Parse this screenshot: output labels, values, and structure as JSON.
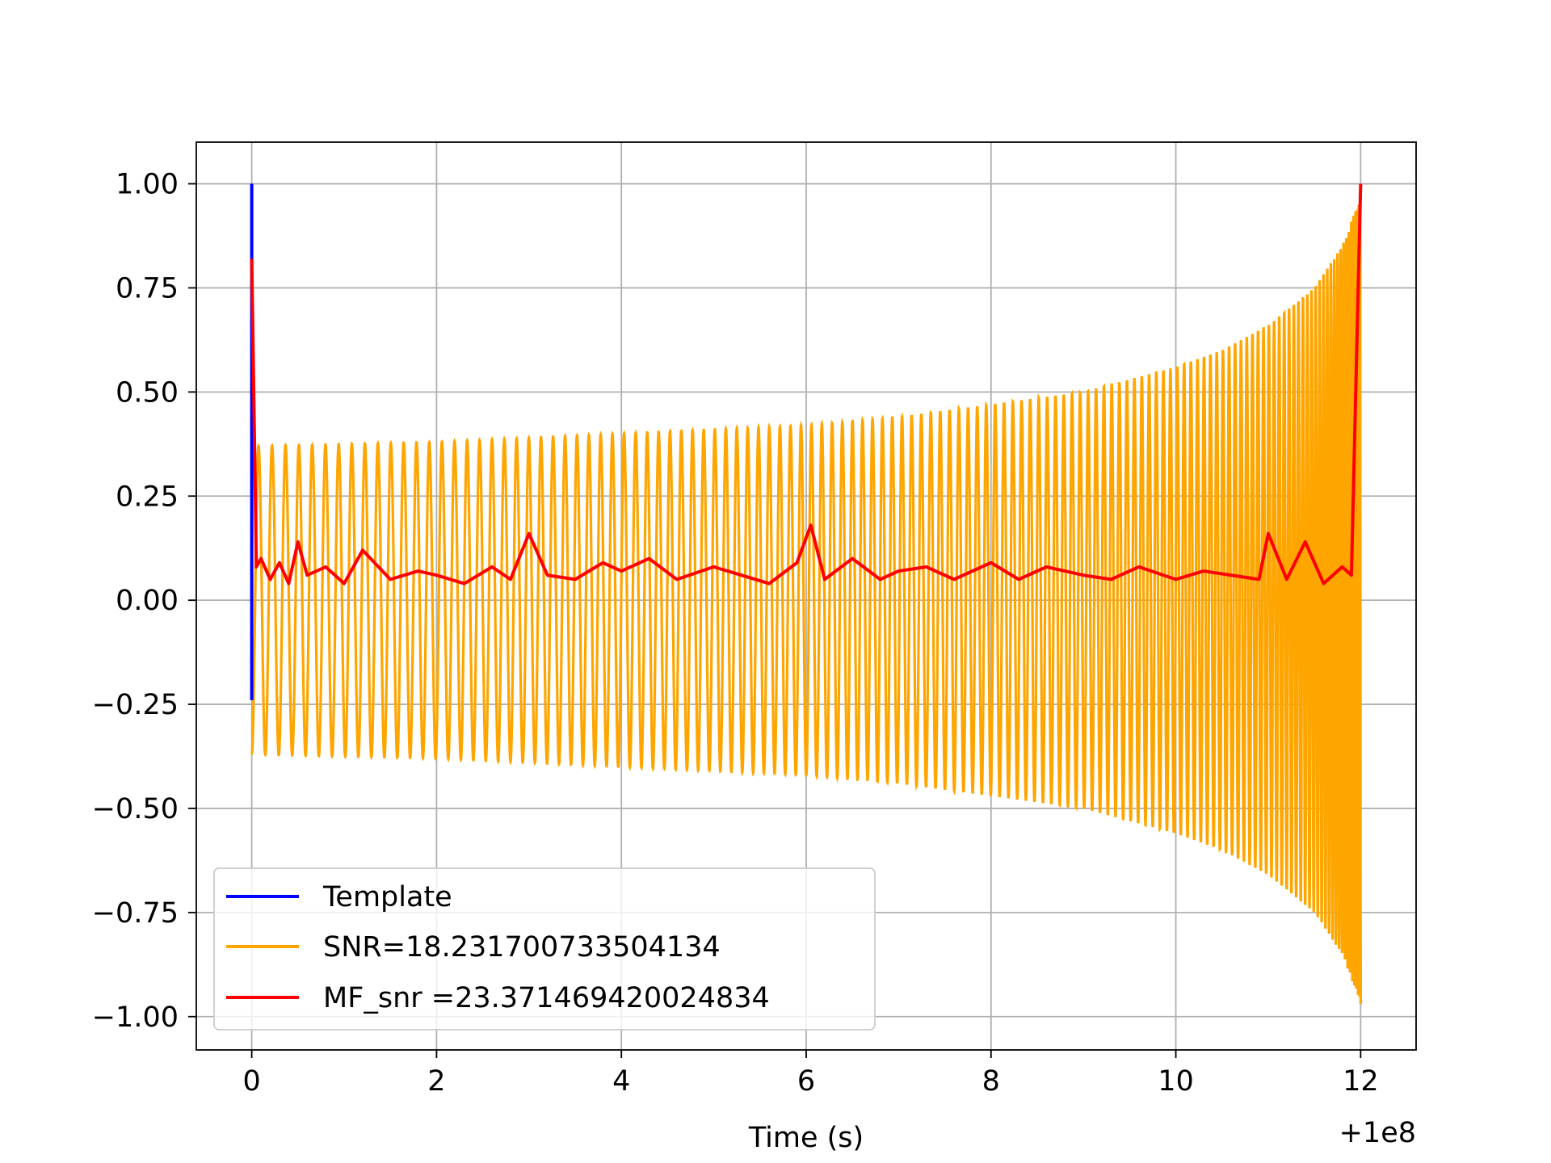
{
  "chart_data": {
    "type": "line",
    "title": "",
    "xlabel": "Time (s)",
    "ylabel": "",
    "x_offset_label": "+1e8",
    "xlim": [
      -0.6,
      12.6
    ],
    "ylim": [
      -1.08,
      1.1
    ],
    "xticks": [
      0,
      2,
      4,
      6,
      8,
      10,
      12
    ],
    "xtick_labels": [
      "0",
      "2",
      "4",
      "6",
      "8",
      "10",
      "12"
    ],
    "yticks": [
      1.0,
      0.75,
      0.5,
      0.25,
      0.0,
      -0.25,
      -0.5,
      -0.75,
      -1.0
    ],
    "ytick_labels": [
      "1.00",
      "0.75",
      "0.50",
      "0.25",
      "0.00",
      "−0.25",
      "−0.50",
      "−0.75",
      "−1.00"
    ],
    "grid": true,
    "legend_position": "lower-left",
    "series": [
      {
        "name": "Template",
        "color": "#0000ff",
        "x": [
          0.0,
          0.0,
          0.0
        ],
        "y": [
          1.0,
          -0.24,
          0.0
        ]
      },
      {
        "name": "SNR=18.231700733504134",
        "color": "#ffa500",
        "description_points": {
          "x": [
            0.0,
            1.0,
            2.0,
            3.0,
            4.0,
            5.0,
            6.0,
            7.0,
            8.0,
            9.0,
            10.0,
            10.5,
            11.0,
            11.5,
            11.8,
            12.0
          ],
          "envelope": [
            0.37,
            0.375,
            0.38,
            0.39,
            0.4,
            0.41,
            0.42,
            0.44,
            0.47,
            0.5,
            0.56,
            0.6,
            0.66,
            0.75,
            0.85,
            0.97
          ],
          "cycles": 130
        }
      },
      {
        "name": "MF_snr =23.371469420024834",
        "color": "#ff0000",
        "x": [
          0.0,
          0.05,
          0.1,
          0.2,
          0.3,
          0.4,
          0.5,
          0.6,
          0.8,
          1.0,
          1.2,
          1.5,
          1.8,
          2.0,
          2.3,
          2.6,
          2.8,
          3.0,
          3.2,
          3.5,
          3.8,
          4.0,
          4.3,
          4.6,
          5.0,
          5.3,
          5.6,
          5.9,
          6.05,
          6.2,
          6.5,
          6.8,
          7.0,
          7.3,
          7.6,
          8.0,
          8.3,
          8.6,
          9.0,
          9.3,
          9.6,
          10.0,
          10.3,
          10.6,
          10.9,
          11.0,
          11.2,
          11.4,
          11.6,
          11.8,
          11.9,
          12.0
        ],
        "y": [
          0.82,
          0.08,
          0.1,
          0.05,
          0.09,
          0.04,
          0.14,
          0.06,
          0.08,
          0.04,
          0.12,
          0.05,
          0.07,
          0.06,
          0.04,
          0.08,
          0.05,
          0.16,
          0.06,
          0.05,
          0.09,
          0.07,
          0.1,
          0.05,
          0.08,
          0.06,
          0.04,
          0.09,
          0.18,
          0.05,
          0.1,
          0.05,
          0.07,
          0.08,
          0.05,
          0.09,
          0.05,
          0.08,
          0.06,
          0.05,
          0.08,
          0.05,
          0.07,
          0.06,
          0.05,
          0.16,
          0.05,
          0.14,
          0.04,
          0.08,
          0.06,
          1.0
        ]
      }
    ]
  }
}
